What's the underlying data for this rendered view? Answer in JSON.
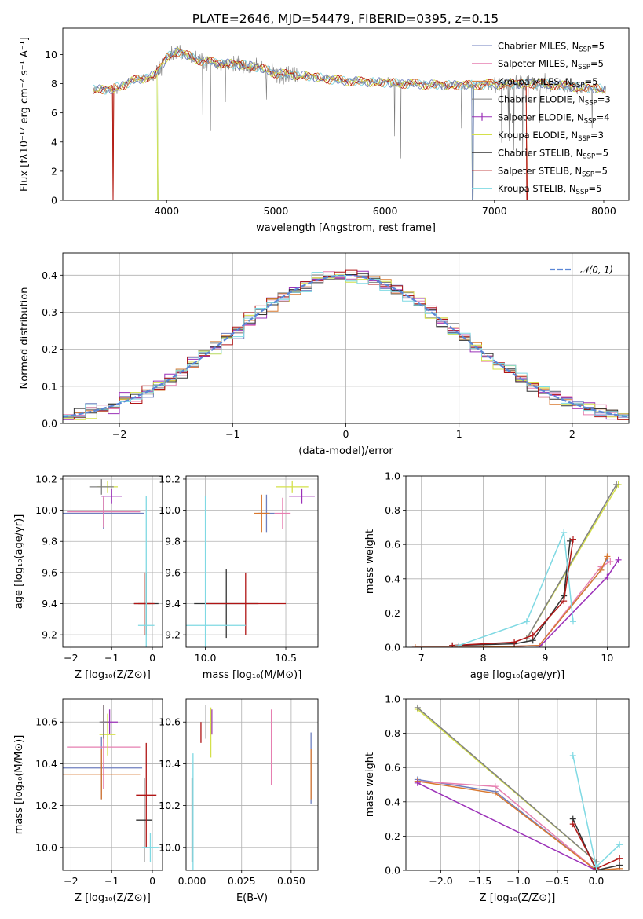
{
  "figure": {
    "title": "PLATE=2646, MJD=54479, FIBERID=0395, z=0.15"
  },
  "legend_entries": [
    {
      "id": "m11_chab",
      "base": "Chabrier MILES, N",
      "sub": "SSP",
      "tail": "=5",
      "color": "#6f7fbf",
      "marker": false
    },
    {
      "id": "m11_salp",
      "base": "Salpeter MILES, N",
      "sub": "SSP",
      "tail": "=5",
      "color": "#e67fb0",
      "marker": false
    },
    {
      "id": "m11_krou",
      "base": "Kroupa MILES, N",
      "sub": "SSP",
      "tail": "=5",
      "color": "#d9782f",
      "marker": false
    },
    {
      "id": "el_chab",
      "base": "Chabrier ELODIE, N",
      "sub": "SSP",
      "tail": "=3",
      "color": "#808080",
      "marker": false
    },
    {
      "id": "el_salp",
      "base": "Salpeter ELODIE, N",
      "sub": "SSP",
      "tail": "=4",
      "color": "#9b30b8",
      "marker": true
    },
    {
      "id": "el_krou",
      "base": "Kroupa ELODIE, N",
      "sub": "SSP",
      "tail": "=3",
      "color": "#d4e04a",
      "marker": false
    },
    {
      "id": "st_chab",
      "base": "Chabrier STELIB, N",
      "sub": "SSP",
      "tail": "=5",
      "color": "#333333",
      "marker": false
    },
    {
      "id": "st_salp",
      "base": "Salpeter STELIB, N",
      "sub": "SSP",
      "tail": "=5",
      "color": "#b01515",
      "marker": false
    },
    {
      "id": "st_krou",
      "base": "Kroupa STELIB, N",
      "sub": "SSP",
      "tail": "=5",
      "color": "#7fd9e3",
      "marker": false
    }
  ],
  "chart_data": [
    {
      "id": "spectrum",
      "type": "line",
      "title": "PLATE=2646, MJD=54479, FIBERID=0395, z=0.15",
      "xlabel": "wavelength [Angstrom, rest frame]",
      "ylabel": "Flux [fλ10⁻¹⁷ erg cm⁻² s⁻¹ A⁻¹]",
      "xlim": [
        3050,
        8230
      ],
      "ylim": [
        0,
        11.8
      ],
      "xticks": [
        4000,
        5000,
        6000,
        7000,
        8000
      ],
      "yticks": [
        0,
        2,
        4,
        6,
        8,
        10
      ],
      "data_x_range": [
        3330,
        8020
      ],
      "continuum": {
        "x": [
          3330,
          3500,
          3700,
          3900,
          4000,
          4100,
          4300,
          4500,
          4800,
          5000,
          5300,
          5600,
          5900,
          6200,
          6500,
          6800,
          7100,
          7400,
          7700,
          8020
        ],
        "y": [
          7.6,
          7.6,
          8.2,
          8.6,
          9.8,
          10.2,
          9.6,
          9.4,
          9.2,
          8.7,
          8.5,
          8.2,
          8.1,
          8.0,
          7.9,
          7.9,
          8.0,
          8.0,
          7.8,
          7.6
        ]
      },
      "legend_position": "upper right",
      "grid": false
    },
    {
      "id": "residuals",
      "type": "line",
      "xlabel": "(data-model)/error",
      "ylabel": "Normed distribution",
      "xlim": [
        -2.5,
        2.5
      ],
      "ylim": [
        0,
        0.46
      ],
      "xticks": [
        -2,
        -1,
        0,
        1,
        2
      ],
      "yticks": [
        0.0,
        0.1,
        0.2,
        0.3,
        0.4
      ],
      "gaussian_label": "𝒩(0, 1)",
      "gaussian_color": "#5b86d6",
      "legend_position": "upper right",
      "grid": true
    },
    {
      "id": "age_vs_Z",
      "type": "scatter",
      "xlabel": "Z [log₁₀(Z/Z⊙)]",
      "ylabel": "age  [log₁₀(age/yr)]",
      "xlim": [
        -2.2,
        0.25
      ],
      "ylim": [
        9.12,
        10.22
      ],
      "xticks": [
        -2,
        -1,
        0
      ],
      "yticks": [
        9.2,
        9.4,
        9.6,
        9.8,
        10.0,
        10.2
      ],
      "grid": true,
      "points": [
        {
          "model": "m11_chab",
          "x": -1.2,
          "y": 9.98,
          "xerr": 1.0,
          "yerr": 0.1
        },
        {
          "model": "el_salp",
          "x": -1.0,
          "y": 10.09,
          "xerr": 0.25,
          "yerr": 0.05
        },
        {
          "model": "el_krou",
          "x": -1.1,
          "y": 10.15,
          "xerr": 0.25,
          "yerr": 0.04
        },
        {
          "model": "m11_salp",
          "x": -1.2,
          "y": 9.99,
          "xerr": 0.9,
          "yerr": 0.1
        },
        {
          "model": "m11_krou",
          "x": -0.2,
          "y": 9.4,
          "xerr": 0.15,
          "yerr": 0.2
        },
        {
          "model": "st_chab",
          "x": -0.15,
          "y": 9.4,
          "xerr": 0.3,
          "yerr": 0.2
        },
        {
          "model": "st_salp",
          "x": -0.2,
          "y": 9.4,
          "xerr": 0.25,
          "yerr": 0.2
        },
        {
          "model": "st_krou",
          "x": -0.15,
          "y": 9.26,
          "xerr": 0.2,
          "yerr": 0.83
        },
        {
          "model": "el_chab",
          "x": -1.25,
          "y": 10.15,
          "xerr": 0.3,
          "yerr": 0.05
        }
      ]
    },
    {
      "id": "age_vs_mass",
      "type": "scatter",
      "xlabel": "mass [log₁₀(M/M⊙)]",
      "ylabel": "",
      "xlim": [
        9.88,
        10.7
      ],
      "ylim": [
        9.12,
        10.22
      ],
      "xticks": [
        10.0,
        10.5
      ],
      "yticks": [
        9.2,
        9.4,
        9.6,
        9.8,
        10.0,
        10.2
      ],
      "grid": true,
      "points": [
        {
          "model": "m11_chab",
          "x": 10.38,
          "y": 9.98,
          "xerr": 0.05,
          "yerr": 0.12
        },
        {
          "model": "m11_salp",
          "x": 10.48,
          "y": 9.98,
          "xerr": 0.05,
          "yerr": 0.1
        },
        {
          "model": "m11_krou",
          "x": 10.35,
          "y": 9.98,
          "xerr": 0.05,
          "yerr": 0.12
        },
        {
          "model": "el_salp",
          "x": 10.6,
          "y": 10.09,
          "xerr": 0.08,
          "yerr": 0.05
        },
        {
          "model": "el_krou",
          "x": 10.54,
          "y": 10.15,
          "xerr": 0.1,
          "yerr": 0.04
        },
        {
          "model": "st_chab",
          "x": 10.13,
          "y": 9.4,
          "xerr": 0.2,
          "yerr": 0.22
        },
        {
          "model": "st_salp",
          "x": 10.25,
          "y": 9.4,
          "xerr": 0.25,
          "yerr": 0.2
        },
        {
          "model": "st_krou",
          "x": 10.0,
          "y": 9.26,
          "xerr": 0.25,
          "yerr": 0.83
        }
      ]
    },
    {
      "id": "weight_vs_age",
      "type": "line",
      "xlabel": "age  [log₁₀(age/yr)]",
      "ylabel": "mass weight",
      "xlim": [
        6.75,
        10.35
      ],
      "ylim": [
        0,
        1.0
      ],
      "xticks": [
        7,
        8,
        9,
        10
      ],
      "yticks": [
        0.0,
        0.2,
        0.4,
        0.6,
        0.8,
        1.0
      ],
      "grid": true,
      "series": [
        {
          "model": "m11_chab",
          "x": [
            6.9,
            7.6,
            8.0,
            8.9,
            9.9,
            10.0
          ],
          "y": [
            0.0,
            0.0,
            0.0,
            0.01,
            0.45,
            0.52
          ]
        },
        {
          "model": "m11_salp",
          "x": [
            6.9,
            7.6,
            8.0,
            8.9,
            9.9,
            10.05
          ],
          "y": [
            0.0,
            0.0,
            0.0,
            0.01,
            0.47,
            0.5
          ]
        },
        {
          "model": "m11_krou",
          "x": [
            6.9,
            7.6,
            8.0,
            8.9,
            9.9,
            10.0
          ],
          "y": [
            0.0,
            0.0,
            0.0,
            0.01,
            0.45,
            0.53
          ]
        },
        {
          "model": "el_salp",
          "x": [
            8.9,
            10.0,
            10.18
          ],
          "y": [
            0.0,
            0.41,
            0.51
          ]
        },
        {
          "model": "el_krou",
          "x": [
            8.7,
            10.18
          ],
          "y": [
            0.05,
            0.95
          ]
        },
        {
          "model": "el_chab",
          "x": [
            8.7,
            10.15
          ],
          "y": [
            0.05,
            0.95
          ]
        },
        {
          "model": "st_chab",
          "x": [
            7.5,
            8.5,
            8.8,
            9.3,
            9.4
          ],
          "y": [
            0.01,
            0.02,
            0.04,
            0.3,
            0.62
          ]
        },
        {
          "model": "st_salp",
          "x": [
            7.5,
            8.5,
            8.8,
            9.3,
            9.45
          ],
          "y": [
            0.01,
            0.03,
            0.07,
            0.27,
            0.63
          ]
        },
        {
          "model": "st_krou",
          "x": [
            7.6,
            8.7,
            9.3,
            9.45
          ],
          "y": [
            0.01,
            0.15,
            0.67,
            0.15
          ]
        }
      ]
    },
    {
      "id": "mass_vs_Z",
      "type": "scatter",
      "xlabel": "Z [log₁₀(Z/Z⊙)]",
      "ylabel": "mass [log₁₀(M/M⊙)]",
      "xlim": [
        -2.2,
        0.25
      ],
      "ylim": [
        9.89,
        10.71
      ],
      "xticks": [
        -2,
        -1,
        0
      ],
      "yticks": [
        10.0,
        10.2,
        10.4,
        10.6
      ],
      "grid": true,
      "points": [
        {
          "model": "m11_chab",
          "x": -1.25,
          "y": 10.38,
          "xerr": 1.0,
          "yerr": 0.15
        },
        {
          "model": "m11_salp",
          "x": -1.2,
          "y": 10.48,
          "xerr": 0.9,
          "yerr": 0.2
        },
        {
          "model": "m11_krou",
          "x": -1.25,
          "y": 10.35,
          "xerr": 0.95,
          "yerr": 0.12
        },
        {
          "model": "el_salp",
          "x": -1.05,
          "y": 10.6,
          "xerr": 0.2,
          "yerr": 0.06
        },
        {
          "model": "el_krou",
          "x": -1.1,
          "y": 10.54,
          "xerr": 0.2,
          "yerr": 0.1
        },
        {
          "model": "el_chab",
          "x": -1.2,
          "y": 10.6,
          "xerr": 0.1,
          "yerr": 0.08
        },
        {
          "model": "st_chab",
          "x": -0.2,
          "y": 10.13,
          "xerr": 0.2,
          "yerr": 0.2
        },
        {
          "model": "st_salp",
          "x": -0.15,
          "y": 10.25,
          "xerr": 0.25,
          "yerr": 0.25
        },
        {
          "model": "st_krou",
          "x": -0.05,
          "y": 10.0,
          "xerr": 0.2,
          "yerr": 0.07
        }
      ]
    },
    {
      "id": "mass_vs_ebv",
      "type": "scatter",
      "xlabel": "E(B-V)",
      "ylabel": "",
      "xlim": [
        -0.003,
        0.0635
      ],
      "ylim": [
        9.89,
        10.71
      ],
      "xticks": [
        0.0,
        0.025,
        0.05
      ],
      "yticks": [
        10.0,
        10.2,
        10.4,
        10.6
      ],
      "grid": true,
      "points": [
        {
          "model": "m11_chab",
          "x": 0.06,
          "y": 10.38,
          "xerr": 0.0,
          "yerr": 0.17
        },
        {
          "model": "m11_salp",
          "x": 0.04,
          "y": 10.48,
          "xerr": 0.0,
          "yerr": 0.18
        },
        {
          "model": "m11_krou",
          "x": 0.06,
          "y": 10.35,
          "xerr": 0.0,
          "yerr": 0.12
        },
        {
          "model": "el_salp",
          "x": 0.01,
          "y": 10.6,
          "xerr": 0.0,
          "yerr": 0.06
        },
        {
          "model": "el_krou",
          "x": 0.0095,
          "y": 10.55,
          "xerr": 0.0,
          "yerr": 0.12
        },
        {
          "model": "el_chab",
          "x": 0.007,
          "y": 10.6,
          "xerr": 0.0,
          "yerr": 0.08
        },
        {
          "model": "st_chab",
          "x": 0.0,
          "y": 10.13,
          "xerr": 0.0,
          "yerr": 0.2
        },
        {
          "model": "st_salp",
          "x": 0.0045,
          "y": 10.55,
          "xerr": 0.0,
          "yerr": 0.05
        },
        {
          "model": "st_krou",
          "x": 0.0005,
          "y": 10.15,
          "xerr": 0.0,
          "yerr": 0.3
        }
      ]
    },
    {
      "id": "weight_vs_Z",
      "type": "line",
      "xlabel": "Z [log₁₀(Z/Z⊙)]",
      "ylabel": "mass weight",
      "xlim": [
        -2.45,
        0.42
      ],
      "ylim": [
        0,
        1.0
      ],
      "xticks": [
        -2.0,
        -1.5,
        -1.0,
        -0.5,
        0.0
      ],
      "yticks": [
        0.0,
        0.2,
        0.4,
        0.6,
        0.8,
        1.0
      ],
      "grid": true,
      "series": [
        {
          "model": "m11_chab",
          "x": [
            -2.3,
            -1.3,
            0.0,
            0.3
          ],
          "y": [
            0.53,
            0.46,
            0.0,
            0.0
          ]
        },
        {
          "model": "m11_salp",
          "x": [
            -2.3,
            -1.3,
            0.0,
            0.3
          ],
          "y": [
            0.52,
            0.49,
            0.0,
            0.0
          ]
        },
        {
          "model": "m11_krou",
          "x": [
            -2.3,
            -1.3,
            0.0,
            0.3
          ],
          "y": [
            0.52,
            0.45,
            0.0,
            0.01
          ]
        },
        {
          "model": "el_salp",
          "x": [
            -2.3,
            0.0
          ],
          "y": [
            0.51,
            0.0
          ]
        },
        {
          "model": "el_krou",
          "x": [
            -2.3,
            0.0
          ],
          "y": [
            0.94,
            0.05
          ]
        },
        {
          "model": "el_chab",
          "x": [
            -2.3,
            0.0
          ],
          "y": [
            0.95,
            0.05
          ]
        },
        {
          "model": "st_chab",
          "x": [
            -0.3,
            0.0,
            0.3
          ],
          "y": [
            0.3,
            0.0,
            0.03
          ]
        },
        {
          "model": "st_salp",
          "x": [
            -0.3,
            0.0,
            0.3
          ],
          "y": [
            0.27,
            0.01,
            0.07
          ]
        },
        {
          "model": "st_krou",
          "x": [
            -0.3,
            0.0,
            0.3
          ],
          "y": [
            0.67,
            0.02,
            0.15
          ]
        }
      ]
    }
  ]
}
